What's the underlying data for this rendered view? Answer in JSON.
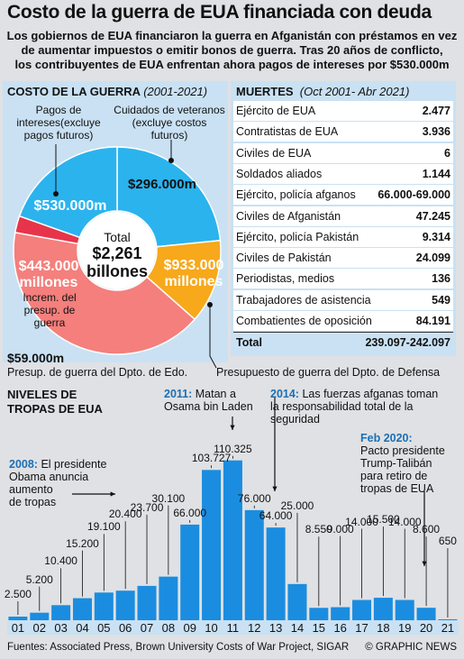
{
  "title": "Costo de la guerra de EUA financiada con deuda",
  "subtitle_line1": "Los gobiernos de EUA financiaron la guerra en Afganistán con préstamos en vez",
  "subtitle_line2": "de aumentar impuestos o emitir bonos de guerra. Tras 20 años de conflicto,",
  "subtitle_line3": "los contribuyentes de EUA enfrentan ahora pagos de intereses por $530.000m",
  "cost": {
    "heading": "COSTO DE LA GUERRA",
    "period": "(2001-2021)",
    "total_label": "Total",
    "total_value_line1": "$2,261",
    "total_value_line2": "billones",
    "interest_label_line1": "Pagos de",
    "interest_label_line2": "intereses(excluye",
    "interest_label_line3": "pagos futuros)",
    "veterans_label_line1": "Cuidados de veteranos",
    "veterans_label_line2": "(excluye costos",
    "veterans_label_line3": "futuros)",
    "state_label_line1": "Increm. del",
    "state_label_line2": "presup. de",
    "state_label_line3": "guerra",
    "overseas_label": "Presup. de guerra del Dpto. de Edo.",
    "defense_label": "Presupuesto de guerra del Dpto. de Defensa",
    "v_interest": "$530.000m",
    "v_veterans": "$296.000m",
    "v_defense_line1": "$933.000",
    "v_defense_line2": "millones",
    "v_state_line1": "$443.000",
    "v_state_line2": "millones",
    "v_overseas": "$59.000m"
  },
  "deaths": {
    "heading": "MUERTES",
    "period": "(Oct 2001- Abr 2021)",
    "rows": [
      {
        "label": "Ejército de EUA",
        "value": "2.477"
      },
      {
        "label": "Contratistas de EUA",
        "value": "3.936"
      },
      {
        "label": "Civiles de EUA",
        "value": "6"
      },
      {
        "label": "Soldados aliados",
        "value": "1.144"
      },
      {
        "label": "Ejército, policía afganos",
        "value": "66.000-69.000"
      },
      {
        "label": "Civiles de Afganistán",
        "value": "47.245"
      },
      {
        "label": "Ejército, policía Pakistán",
        "value": "9.314"
      },
      {
        "label": "Civiles de Pakistán",
        "value": "24.099"
      },
      {
        "label": "Periodistas, medios",
        "value": "136"
      },
      {
        "label": "Trabajadores de asistencia",
        "value": "549"
      },
      {
        "label": "Combatientes de oposición",
        "value": "84.191"
      },
      {
        "label": "Total",
        "value": "239.097-242.097"
      }
    ]
  },
  "troops": {
    "heading_line1": "NIVELES DE",
    "heading_line2": "TROPAS DE EUA",
    "ann_2008_year": "2008:",
    "ann_2008_line1": " El presidente",
    "ann_2008_line2": "Obama anuncia",
    "ann_2008_line3": "aumento",
    "ann_2008_line4": "de tropas",
    "ann_2011_year": "2011:",
    "ann_2011_line1": " Matan a",
    "ann_2011_line2": "Osama bin Laden",
    "ann_2014_year": "2014:",
    "ann_2014_line1": " Las fuerzas afganas toman",
    "ann_2014_line2": "la responsabilidad total de la",
    "ann_2014_line3": "seguridad",
    "ann_2020_year": "Feb 2020:",
    "ann_2020_line1": "Pacto presidente",
    "ann_2020_line2": "Trump-Talibán",
    "ann_2020_line3": "para retiro de",
    "ann_2020_line4": "tropas de EUA"
  },
  "chart_data": [
    {
      "type": "pie",
      "title": "COSTO DE LA GUERRA (2001-2021)",
      "units": "USD",
      "slices": [
        {
          "name": "Pagos de intereses (excluye pagos futuros)",
          "value": 530000,
          "label": "$530.000m",
          "color": "#2bb3ee"
        },
        {
          "name": "Cuidados de veteranos (excluye costos futuros)",
          "value": 296000,
          "label": "$296.000m",
          "color": "#f7a81b"
        },
        {
          "name": "Presupuesto de guerra del Dpto. de Defensa",
          "value": 933000,
          "label": "$933.000 millones",
          "color": "#f47f7c"
        },
        {
          "name": "Presup. de guerra del Dpto. de Edo.",
          "value": 59000,
          "label": "$59.000m",
          "color": "#e8344b"
        },
        {
          "name": "Increm. del presup. de guerra",
          "value": 443000,
          "label": "$443.000 millones",
          "color": "#2bb3ee"
        }
      ],
      "total": "$2,261 billones"
    },
    {
      "type": "bar",
      "title": "NIVELES DE TROPAS DE EUA",
      "categories": [
        "01",
        "02",
        "03",
        "04",
        "05",
        "06",
        "07",
        "08",
        "09",
        "10",
        "11",
        "12",
        "13",
        "14",
        "15",
        "16",
        "17",
        "18",
        "19",
        "20",
        "21"
      ],
      "values": [
        2500,
        5200,
        10400,
        15200,
        19100,
        20400,
        23700,
        30100,
        66000,
        103727,
        110325,
        76000,
        64000,
        25000,
        8550,
        9000,
        14000,
        15500,
        14000,
        8600,
        650
      ],
      "value_labels": [
        "2.500",
        "5.200",
        "10.400",
        "15.200",
        "19.100",
        "20.400",
        "23.700",
        "30.100",
        "66.000",
        "103.727",
        "110.325",
        "76.000",
        "64.000",
        "25.000",
        "8.550",
        "9.000",
        "14.000",
        "15.500",
        "14.000",
        "8.600",
        "650"
      ],
      "color": "#1a8de0"
    }
  ],
  "footer": {
    "sources": "Fuentes: Associated Press, Brown University Costs of War Project, SIGAR",
    "credit": "© GRAPHIC NEWS"
  }
}
